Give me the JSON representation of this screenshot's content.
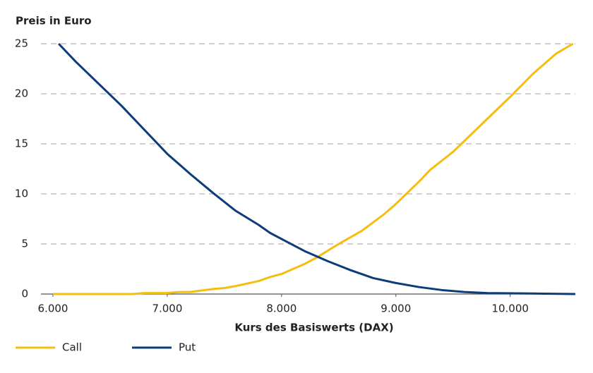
{
  "chart_data": {
    "type": "line",
    "ylabel": "Preis in Euro",
    "xlabel": "Kurs des Basiswerts (DAX)",
    "xlim": [
      6000,
      10570
    ],
    "ylim": [
      0,
      25
    ],
    "xticks": [
      {
        "value": 6000,
        "label": "6.000"
      },
      {
        "value": 7000,
        "label": "7.000"
      },
      {
        "value": 8000,
        "label": "8.000"
      },
      {
        "value": 9000,
        "label": "9.000"
      },
      {
        "value": 10000,
        "label": "10.000"
      }
    ],
    "yticks": [
      0,
      5,
      10,
      15,
      20,
      25
    ],
    "grid": true,
    "legend": "bottom-left",
    "series": [
      {
        "name": "Call",
        "color": "#f5be0f",
        "x": [
          6000,
          6700,
          6800,
          7000,
          7100,
          7200,
          7400,
          7500,
          7600,
          7800,
          7900,
          8000,
          8100,
          8200,
          8300,
          8400,
          8500,
          8700,
          8900,
          9000,
          9200,
          9300,
          9500,
          9700,
          9900,
          10000,
          10200,
          10400,
          10550
        ],
        "values": [
          0,
          0,
          0.1,
          0.1,
          0.2,
          0.2,
          0.5,
          0.6,
          0.8,
          1.3,
          1.7,
          2.0,
          2.5,
          3.0,
          3.6,
          4.3,
          5.0,
          6.3,
          8.0,
          9.0,
          11.2,
          12.4,
          14.2,
          16.4,
          18.6,
          19.7,
          22.0,
          24.0,
          25
        ]
      },
      {
        "name": "Put",
        "color": "#0d3c7a",
        "x": [
          6050,
          6200,
          6400,
          6600,
          6800,
          7000,
          7200,
          7400,
          7600,
          7800,
          7900,
          8000,
          8200,
          8400,
          8600,
          8800,
          9000,
          9200,
          9400,
          9600,
          9800,
          10200,
          10570
        ],
        "values": [
          25,
          23.2,
          21,
          18.8,
          16.4,
          14,
          12,
          10.1,
          8.3,
          6.9,
          6.1,
          5.5,
          4.3,
          3.3,
          2.4,
          1.6,
          1.1,
          0.7,
          0.4,
          0.2,
          0.1,
          0.05,
          0
        ]
      }
    ]
  }
}
